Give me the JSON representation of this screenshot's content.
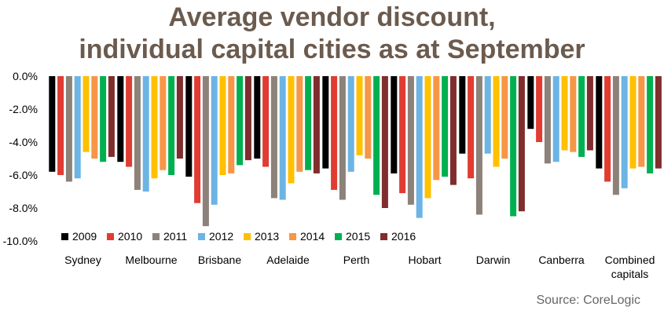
{
  "title_line1": "Average vendor discount,",
  "title_line2": "individual capital cities as at September",
  "source": "Source: CoreLogic",
  "chart_data": {
    "type": "bar",
    "title": "Average vendor discount, individual capital cities as at September",
    "xlabel": "",
    "ylabel": "",
    "ylim": [
      -10.0,
      0.0
    ],
    "y_ticks": [
      "0.0%",
      "-2.0%",
      "-4.0%",
      "-6.0%",
      "-8.0%",
      "-10.0%"
    ],
    "y_tick_values": [
      0,
      -2,
      -4,
      -6,
      -8,
      -10
    ],
    "grid": false,
    "legend_position": "bottom-left",
    "categories": [
      [
        "Sydney"
      ],
      [
        "Melbourne"
      ],
      [
        "Brisbane"
      ],
      [
        "Adelaide"
      ],
      [
        "Perth"
      ],
      [
        "Hobart"
      ],
      [
        "Darwin"
      ],
      [
        "Canberra"
      ],
      [
        "Combined",
        "capitals"
      ]
    ],
    "series": [
      {
        "name": "2009",
        "color": "#000000",
        "values": [
          -5.8,
          -5.2,
          -6.1,
          -5.0,
          -5.6,
          -5.9,
          -4.7,
          -3.2,
          -5.6
        ]
      },
      {
        "name": "2010",
        "color": "#e03c31",
        "values": [
          -6.0,
          -5.5,
          -7.7,
          -5.5,
          -6.9,
          -7.1,
          -6.2,
          -4.0,
          -6.4
        ]
      },
      {
        "name": "2011",
        "color": "#8c8279",
        "values": [
          -6.4,
          -6.9,
          -9.1,
          -7.4,
          -7.5,
          -7.8,
          -8.4,
          -5.3,
          -7.2
        ]
      },
      {
        "name": "2012",
        "color": "#6cb4e4",
        "values": [
          -6.2,
          -7.0,
          -7.8,
          -7.5,
          -5.8,
          -8.6,
          -4.7,
          -5.2,
          -6.8
        ]
      },
      {
        "name": "2013",
        "color": "#ffc000",
        "values": [
          -4.6,
          -6.2,
          -6.0,
          -6.5,
          -4.8,
          -7.4,
          -5.5,
          -4.5,
          -5.6
        ]
      },
      {
        "name": "2014",
        "color": "#f79646",
        "values": [
          -5.0,
          -5.7,
          -5.9,
          -5.8,
          -5.0,
          -6.3,
          -5.0,
          -4.6,
          -5.5
        ]
      },
      {
        "name": "2015",
        "color": "#00b050",
        "values": [
          -5.2,
          -6.0,
          -5.4,
          -5.7,
          -7.2,
          -6.1,
          -8.5,
          -4.9,
          -5.9
        ]
      },
      {
        "name": "2016",
        "color": "#7f2d2d",
        "values": [
          -4.9,
          -5.0,
          -5.1,
          -5.9,
          -8.0,
          -6.6,
          -8.2,
          -4.5,
          -5.6
        ]
      }
    ]
  }
}
